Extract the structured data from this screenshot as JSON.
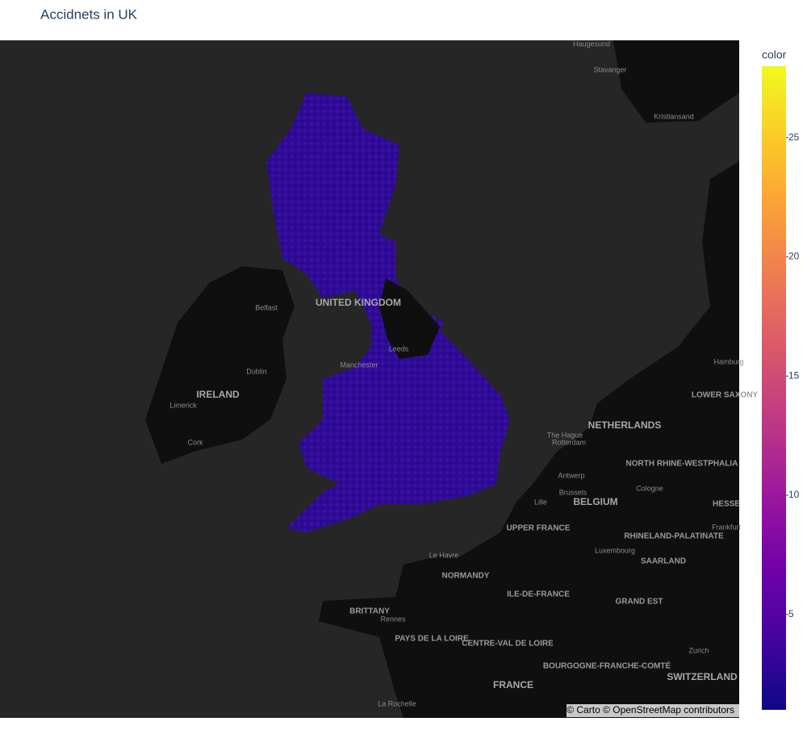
{
  "title": "Accidnets in UK",
  "map": {
    "labels": [
      {
        "text": "Haugesund",
        "kind": "place"
      },
      {
        "text": "Stavanger",
        "kind": "place"
      },
      {
        "text": "Kristiansand",
        "kind": "place"
      },
      {
        "text": "UNITED KINGDOM",
        "kind": "country"
      },
      {
        "text": "Belfast",
        "kind": "place"
      },
      {
        "text": "Dublin",
        "kind": "place"
      },
      {
        "text": "IRELAND",
        "kind": "country"
      },
      {
        "text": "Limerick",
        "kind": "place"
      },
      {
        "text": "Cork",
        "kind": "place"
      },
      {
        "text": "Leeds",
        "kind": "place"
      },
      {
        "text": "Manchester",
        "kind": "place"
      },
      {
        "text": "NETHERLANDS",
        "kind": "country"
      },
      {
        "text": "The Hague",
        "kind": "place"
      },
      {
        "text": "Rotterdam",
        "kind": "place"
      },
      {
        "text": "Antwerp",
        "kind": "place"
      },
      {
        "text": "Brussels",
        "kind": "place"
      },
      {
        "text": "Lille",
        "kind": "place"
      },
      {
        "text": "BELGIUM",
        "kind": "country"
      },
      {
        "text": "Cologne",
        "kind": "place"
      },
      {
        "text": "NORTH RHINE-WESTPHALIA",
        "kind": "region"
      },
      {
        "text": "UPPER FRANCE",
        "kind": "region"
      },
      {
        "text": "RHINELAND-PALATINATE",
        "kind": "region"
      },
      {
        "text": "Luxembourg",
        "kind": "place"
      },
      {
        "text": "SAARLAND",
        "kind": "region"
      },
      {
        "text": "Le Havre",
        "kind": "place"
      },
      {
        "text": "NORMANDY",
        "kind": "region"
      },
      {
        "text": "ILE-DE-FRANCE",
        "kind": "region"
      },
      {
        "text": "GRAND EST",
        "kind": "region"
      },
      {
        "text": "BRITTANY",
        "kind": "region"
      },
      {
        "text": "Rennes",
        "kind": "place"
      },
      {
        "text": "PAYS DE LA LOIRE",
        "kind": "region"
      },
      {
        "text": "CENTRE-VAL DE LOIRE",
        "kind": "region"
      },
      {
        "text": "FRANCE",
        "kind": "country"
      },
      {
        "text": "BOURGOGNE-FRANCHE-COMTÉ",
        "kind": "region"
      },
      {
        "text": "Zurich",
        "kind": "place"
      },
      {
        "text": "SWITZERLAND",
        "kind": "country"
      },
      {
        "text": "La Rochelle",
        "kind": "place"
      },
      {
        "text": "HESSE",
        "kind": "region"
      },
      {
        "text": "Frankfurt",
        "kind": "place"
      },
      {
        "text": "LOWER SAXONY",
        "kind": "region"
      },
      {
        "text": "Hamburg",
        "kind": "place"
      }
    ]
  },
  "colorbar": {
    "title": "color",
    "range": [
      1,
      28
    ],
    "ticks": [
      5,
      10,
      15,
      20,
      25
    ],
    "colors": [
      "#0d0887",
      "#46039f",
      "#7201a8",
      "#9c179e",
      "#bd3786",
      "#d8576b",
      "#ed7953",
      "#fb9f3a",
      "#fdca26",
      "#f0f921"
    ]
  },
  "attribution": "© Carto © OpenStreetMap contributors"
}
